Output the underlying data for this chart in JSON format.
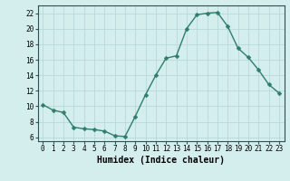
{
  "x": [
    0,
    1,
    2,
    3,
    4,
    5,
    6,
    7,
    8,
    9,
    10,
    11,
    12,
    13,
    14,
    15,
    16,
    17,
    18,
    19,
    20,
    21,
    22,
    23
  ],
  "y": [
    10.2,
    9.5,
    9.2,
    7.3,
    7.1,
    7.0,
    6.8,
    6.2,
    6.1,
    8.7,
    11.5,
    14.0,
    16.2,
    16.5,
    20.0,
    21.8,
    22.0,
    22.1,
    20.3,
    17.5,
    16.3,
    14.7,
    12.8,
    11.7
  ],
  "line_color": "#2e7d6e",
  "marker": "D",
  "markersize": 2.5,
  "linewidth": 1.0,
  "background_color": "#d4eeee",
  "grid_color": "#b8d8d8",
  "grid_minor_color": "#c8e4e4",
  "xlabel": "Humidex (Indice chaleur)",
  "xlim": [
    -0.5,
    23.5
  ],
  "ylim": [
    5.5,
    23.0
  ],
  "xticks": [
    0,
    1,
    2,
    3,
    4,
    5,
    6,
    7,
    8,
    9,
    10,
    11,
    12,
    13,
    14,
    15,
    16,
    17,
    18,
    19,
    20,
    21,
    22,
    23
  ],
  "yticks": [
    6,
    8,
    10,
    12,
    14,
    16,
    18,
    20,
    22
  ],
  "tick_fontsize": 5.5,
  "xlabel_fontsize": 7,
  "axis_color": "#2e5050"
}
